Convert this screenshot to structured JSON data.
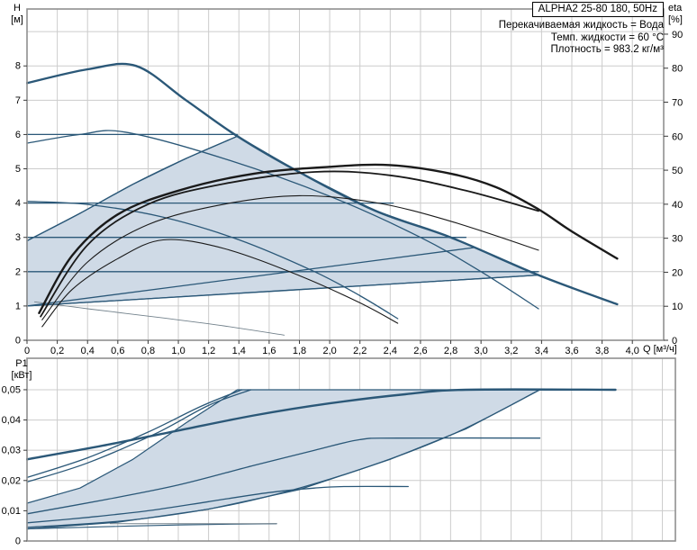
{
  "title_box": "ALPHA2 25-80 180, 50Hz",
  "info_lines": [
    "Перекачиваемая жидкость = Вода",
    "Темп. жидкости = 60 °C",
    "Плотность = 983.2 кг/м³"
  ],
  "axis_labels": {
    "head_top": "H",
    "head_unit": "[м]",
    "eta_top": "eta",
    "eta_unit": "[%]",
    "power_top": "P1",
    "power_unit": "[кВт]",
    "flow": "Q [м³/ч]"
  },
  "colors": {
    "blue": "#2b5878",
    "black": "#1a1a1a",
    "gray": "#73828c",
    "fill": "#cfdae6",
    "grid": "#cccccc",
    "frame": "#8f8f8f",
    "tick": "#3a3a3a",
    "text": "#000000"
  },
  "chart_data": [
    {
      "type": "line",
      "name": "head-flow-chart",
      "title": "ALPHA2 25-80 180, 50Hz",
      "x_axis": {
        "label": "Q [м³/ч]",
        "range": [
          0,
          4.207
        ],
        "tick_values": [
          0,
          0.2,
          0.4,
          0.6,
          0.8,
          1.0,
          1.2,
          1.4,
          1.6,
          1.8,
          2.0,
          2.2,
          2.4,
          2.6,
          2.8,
          3.0,
          3.2,
          3.4,
          3.6,
          3.8,
          4.0
        ],
        "tick_labels": [
          "0",
          "0,2",
          "0,4",
          "0,6",
          "0,8",
          "1,0",
          "1,2",
          "1,4",
          "1,6",
          "1,8",
          "2,0",
          "2,2",
          "2,4",
          "2,6",
          "2,8",
          "3,0",
          "3,2",
          "3,4",
          "3,6",
          "3,8",
          "4,0"
        ],
        "grid_values": [
          0.2,
          0.4,
          0.6,
          0.8,
          1.0,
          1.2,
          1.4,
          1.6,
          1.8,
          2.0,
          2.2,
          2.4,
          2.6,
          2.8,
          3.0,
          3.2,
          3.4,
          3.6,
          3.8,
          4.0
        ]
      },
      "y_left": {
        "label": "H [м]",
        "range": [
          0,
          9.66
        ],
        "tick_values": [
          0,
          1,
          2,
          3,
          4,
          5,
          6,
          7,
          8
        ],
        "tick_labels": [
          "0",
          "1",
          "2",
          "3",
          "4",
          "5",
          "6",
          "7",
          "8"
        ],
        "grid_values": [
          1,
          2,
          3,
          4,
          5,
          6,
          7,
          8,
          9
        ]
      },
      "y_right": {
        "label": "eta [%]",
        "range": [
          0,
          97.4
        ],
        "tick_values": [
          0,
          10,
          20,
          30,
          40,
          50,
          60,
          70,
          80,
          90
        ],
        "tick_labels": [
          "0",
          "10",
          "20",
          "30",
          "40",
          "50",
          "60",
          "70",
          "80",
          "90"
        ]
      },
      "region": {
        "name": "duty-range",
        "points": [
          [
            0,
            1.0
          ],
          [
            0,
            2.9
          ],
          [
            0.35,
            3.7
          ],
          [
            0.7,
            4.55
          ],
          [
            1.05,
            5.3
          ],
          [
            1.39,
            5.95
          ],
          [
            1.8,
            4.9
          ],
          [
            2.3,
            3.78
          ],
          [
            2.8,
            3.0
          ],
          [
            3.38,
            1.9
          ]
        ]
      },
      "series": [
        {
          "name": "max-speed-curve",
          "axis": "left",
          "color": "blue",
          "width": 2.4,
          "points": [
            [
              0,
              7.5
            ],
            [
              0.4,
              7.9
            ],
            [
              0.72,
              8.0
            ],
            [
              1.05,
              7.0
            ],
            [
              1.39,
              5.95
            ],
            [
              1.8,
              4.9
            ],
            [
              2.3,
              3.78
            ],
            [
              2.8,
              3.0
            ],
            [
              3.38,
              1.9
            ],
            [
              3.9,
              1.05
            ]
          ]
        },
        {
          "name": "speed-2-curve",
          "axis": "left",
          "color": "blue",
          "width": 1.3,
          "points": [
            [
              0,
              5.75
            ],
            [
              0.35,
              6.0
            ],
            [
              0.65,
              6.07
            ],
            [
              1.3,
              5.3
            ],
            [
              2.0,
              4.2
            ],
            [
              2.6,
              3.0
            ],
            [
              3.0,
              2.0
            ],
            [
              3.38,
              0.92
            ]
          ]
        },
        {
          "name": "speed-1-curve",
          "axis": "left",
          "color": "blue",
          "width": 1.3,
          "points": [
            [
              0,
              4.05
            ],
            [
              0.4,
              3.96
            ],
            [
              0.9,
              3.59
            ],
            [
              1.4,
              2.93
            ],
            [
              1.9,
              2.0
            ],
            [
              2.2,
              1.3
            ],
            [
              2.45,
              0.63
            ]
          ]
        },
        {
          "name": "min-speed-curve",
          "axis": "left",
          "color": "gray",
          "width": 0.9,
          "points": [
            [
              0.05,
              1.12
            ],
            [
              0.4,
              0.92
            ],
            [
              0.9,
              0.65
            ],
            [
              1.3,
              0.42
            ],
            [
              1.7,
              0.15
            ]
          ]
        },
        {
          "name": "cp-curve-6m",
          "axis": "left",
          "color": "blue",
          "width": 1.3,
          "points": [
            [
              0,
              6.0
            ],
            [
              1.39,
              6.0
            ]
          ]
        },
        {
          "name": "cp-curve-4m",
          "axis": "left",
          "color": "blue",
          "width": 1.3,
          "points": [
            [
              0,
              4.0
            ],
            [
              2.42,
              4.0
            ]
          ]
        },
        {
          "name": "cp-curve-3m",
          "axis": "left",
          "color": "blue",
          "width": 1.3,
          "points": [
            [
              0,
              3.0
            ],
            [
              2.9,
              3.0
            ]
          ]
        },
        {
          "name": "cp-curve-2m",
          "axis": "left",
          "color": "blue",
          "width": 1.3,
          "points": [
            [
              0,
              2.0
            ],
            [
              3.38,
              2.0
            ]
          ]
        },
        {
          "name": "pp-upper-limit",
          "axis": "left",
          "color": "blue",
          "width": 1.3,
          "points": [
            [
              0,
              2.9
            ],
            [
              0.35,
              3.7
            ],
            [
              0.7,
              4.55
            ],
            [
              1.05,
              5.3
            ],
            [
              1.39,
              5.95
            ]
          ]
        },
        {
          "name": "pp-mid",
          "axis": "left",
          "color": "blue",
          "width": 1.3,
          "points": [
            [
              0,
              1.0
            ],
            [
              1.5,
              1.86
            ],
            [
              2.95,
              2.7
            ]
          ]
        },
        {
          "name": "pp-lower-limit",
          "axis": "left",
          "color": "blue",
          "width": 1.3,
          "points": [
            [
              0,
              1.0
            ],
            [
              1.7,
              1.45
            ],
            [
              3.38,
              1.9
            ]
          ]
        },
        {
          "name": "eta-max-curve",
          "axis": "right",
          "color": "black",
          "width": 2.4,
          "points": [
            [
              0.08,
              8
            ],
            [
              0.3,
              25
            ],
            [
              0.6,
              37
            ],
            [
              1.0,
              44
            ],
            [
              1.5,
              49
            ],
            [
              2.0,
              51
            ],
            [
              2.4,
              51.5
            ],
            [
              2.8,
              49
            ],
            [
              3.1,
              45
            ],
            [
              3.38,
              38.5
            ],
            [
              3.6,
              32
            ],
            [
              3.9,
              24
            ]
          ]
        },
        {
          "name": "eta-secondary-curve",
          "axis": "right",
          "color": "black",
          "width": 1.8,
          "points": [
            [
              0.09,
              7
            ],
            [
              0.4,
              28
            ],
            [
              0.8,
              40
            ],
            [
              1.3,
              46
            ],
            [
              1.9,
              49.5
            ],
            [
              2.4,
              48.5
            ],
            [
              2.9,
              44
            ],
            [
              3.38,
              38
            ]
          ]
        },
        {
          "name": "eta-speed-2-curve",
          "axis": "right",
          "color": "black",
          "width": 1.1,
          "points": [
            [
              0.1,
              6
            ],
            [
              0.4,
              23
            ],
            [
              0.8,
              34
            ],
            [
              1.3,
              40
            ],
            [
              1.8,
              42.5
            ],
            [
              2.3,
              40.5
            ],
            [
              2.8,
              35
            ],
            [
              3.38,
              26.5
            ]
          ]
        },
        {
          "name": "eta-speed-1-curve",
          "axis": "right",
          "color": "black",
          "width": 1.1,
          "points": [
            [
              0.1,
              4
            ],
            [
              0.3,
              15
            ],
            [
              0.6,
              24
            ],
            [
              0.9,
              29.5
            ],
            [
              1.3,
              27
            ],
            [
              1.8,
              19
            ],
            [
              2.2,
              11
            ],
            [
              2.45,
              5
            ]
          ]
        }
      ]
    },
    {
      "type": "line",
      "name": "power-flow-chart",
      "title": "",
      "x_axis": {
        "label": "",
        "range": [
          0,
          4.286
        ],
        "tick_values": [],
        "tick_labels": [],
        "grid_values": [
          0.2,
          0.4,
          0.6,
          0.8,
          1.0,
          1.2,
          1.4,
          1.6,
          1.8,
          2.0,
          2.2,
          2.4,
          2.6,
          2.8,
          3.0,
          3.2,
          3.4,
          3.6,
          3.8,
          4.0,
          4.2
        ]
      },
      "y_left": {
        "label": "P1 [кВт]",
        "range": [
          0,
          0.0604
        ],
        "tick_values": [
          0,
          0.01,
          0.02,
          0.03,
          0.04,
          0.05
        ],
        "tick_labels": [
          "0",
          "0,01",
          "0,02",
          "0,03",
          "0,04",
          "0,05"
        ],
        "grid_values": [
          0.01,
          0.02,
          0.03,
          0.04,
          0.05
        ]
      },
      "region": {
        "name": "power-duty-range",
        "points": [
          [
            0,
            0.004
          ],
          [
            0,
            0.0125
          ],
          [
            0.35,
            0.0175
          ],
          [
            0.7,
            0.027
          ],
          [
            1.05,
            0.039
          ],
          [
            1.39,
            0.05
          ],
          [
            3.39,
            0.05
          ],
          [
            2.9,
            0.037
          ],
          [
            2.4,
            0.027
          ],
          [
            1.8,
            0.017
          ],
          [
            1.2,
            0.0105
          ],
          [
            0.6,
            0.0062
          ]
        ]
      },
      "series": [
        {
          "name": "p1-max-curve",
          "axis": "left",
          "color": "blue",
          "width": 2.4,
          "points": [
            [
              0,
              0.027
            ],
            [
              0.5,
              0.0315
            ],
            [
              1.0,
              0.0365
            ],
            [
              1.5,
              0.0415
            ],
            [
              2.0,
              0.0455
            ],
            [
              2.5,
              0.0485
            ],
            [
              2.9,
              0.05
            ],
            [
              3.89,
              0.05
            ]
          ]
        },
        {
          "name": "p1-cp6-curve",
          "axis": "left",
          "color": "blue",
          "width": 1.3,
          "points": [
            [
              0,
              0.021
            ],
            [
              0.4,
              0.0275
            ],
            [
              0.8,
              0.036
            ],
            [
              1.15,
              0.0445
            ],
            [
              1.42,
              0.05
            ]
          ]
        },
        {
          "name": "p1-cp4-curve",
          "axis": "left",
          "color": "blue",
          "width": 1.3,
          "points": [
            [
              0,
              0.0195
            ],
            [
              0.4,
              0.0258
            ],
            [
              0.85,
              0.0355
            ],
            [
              1.2,
              0.0448
            ],
            [
              1.48,
              0.05
            ]
          ]
        },
        {
          "name": "p1-speed-2-curve",
          "axis": "left",
          "color": "blue",
          "width": 1.3,
          "points": [
            [
              0,
              0.009
            ],
            [
              0.5,
              0.0135
            ],
            [
              1.0,
              0.0185
            ],
            [
              1.5,
              0.025
            ],
            [
              1.9,
              0.03
            ],
            [
              2.2,
              0.0335
            ],
            [
              2.45,
              0.034
            ],
            [
              3.39,
              0.034
            ]
          ]
        },
        {
          "name": "p1-speed-1-curve",
          "axis": "left",
          "color": "blue",
          "width": 1.3,
          "points": [
            [
              0,
              0.006
            ],
            [
              0.4,
              0.0078
            ],
            [
              0.8,
              0.01
            ],
            [
              1.2,
              0.013
            ],
            [
              1.6,
              0.016
            ],
            [
              1.9,
              0.0175
            ],
            [
              2.1,
              0.018
            ],
            [
              2.52,
              0.018
            ]
          ]
        },
        {
          "name": "p1-pp-lower-curve",
          "axis": "left",
          "color": "blue",
          "width": 1.3,
          "points": [
            [
              0,
              0.0045
            ],
            [
              0.7,
              0.007
            ],
            [
              1.4,
              0.0125
            ],
            [
              2.1,
              0.022
            ],
            [
              2.8,
              0.035
            ],
            [
              3.39,
              0.05
            ]
          ]
        },
        {
          "name": "p1-min-curve",
          "axis": "left",
          "color": "blue",
          "width": 1.1,
          "points": [
            [
              0,
              0.004
            ],
            [
              0.5,
              0.0047
            ],
            [
              1.0,
              0.0053
            ],
            [
              1.4,
              0.0056
            ],
            [
              1.65,
              0.0057
            ]
          ]
        },
        {
          "name": "p1-min-plateau",
          "axis": "left",
          "color": "gray",
          "width": 1.0,
          "points": [
            [
              0.55,
              0.0057
            ],
            [
              1.65,
              0.0057
            ]
          ]
        }
      ]
    }
  ]
}
